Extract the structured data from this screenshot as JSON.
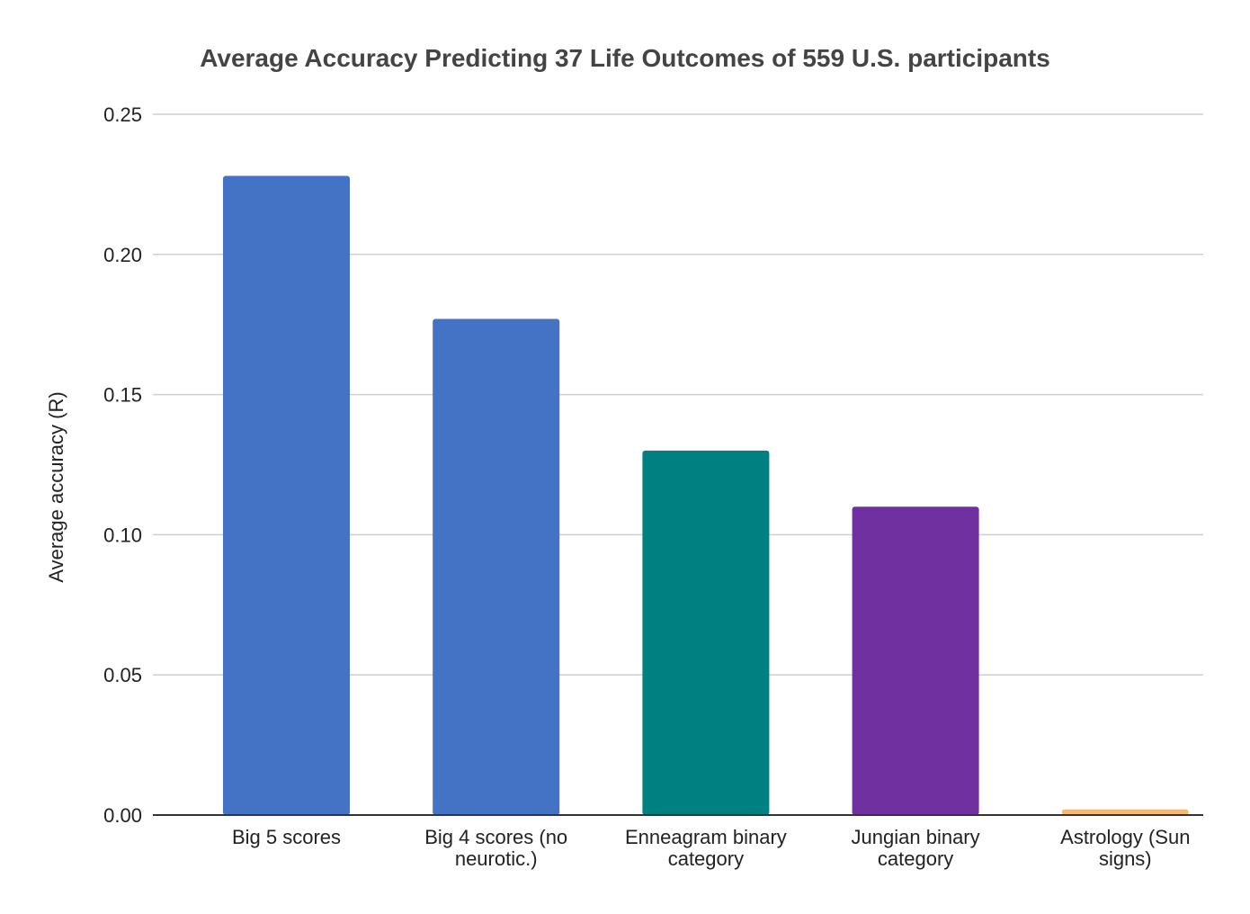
{
  "chart_data": {
    "type": "bar",
    "title": "Average Accuracy Predicting 37 Life Outcomes of 559 U.S. participants",
    "xlabel": "",
    "ylabel": "Average accuracy (R)",
    "ylim": [
      0,
      0.25
    ],
    "yticks": [
      "0.00",
      "0.05",
      "0.10",
      "0.15",
      "0.20",
      "0.25"
    ],
    "grid": true,
    "legend": "none",
    "categories": [
      [
        "Big 5 scores"
      ],
      [
        "Big 4 scores (no",
        "neurotic.)"
      ],
      [
        "Enneagram binary",
        "category"
      ],
      [
        "Jungian binary",
        "category"
      ],
      [
        "Astrology (Sun",
        "signs)"
      ]
    ],
    "values": [
      0.228,
      0.177,
      0.13,
      0.11,
      0.002
    ],
    "colors": [
      "#4472c4",
      "#4472c4",
      "#008080",
      "#7030a0",
      "#f4b870"
    ]
  }
}
